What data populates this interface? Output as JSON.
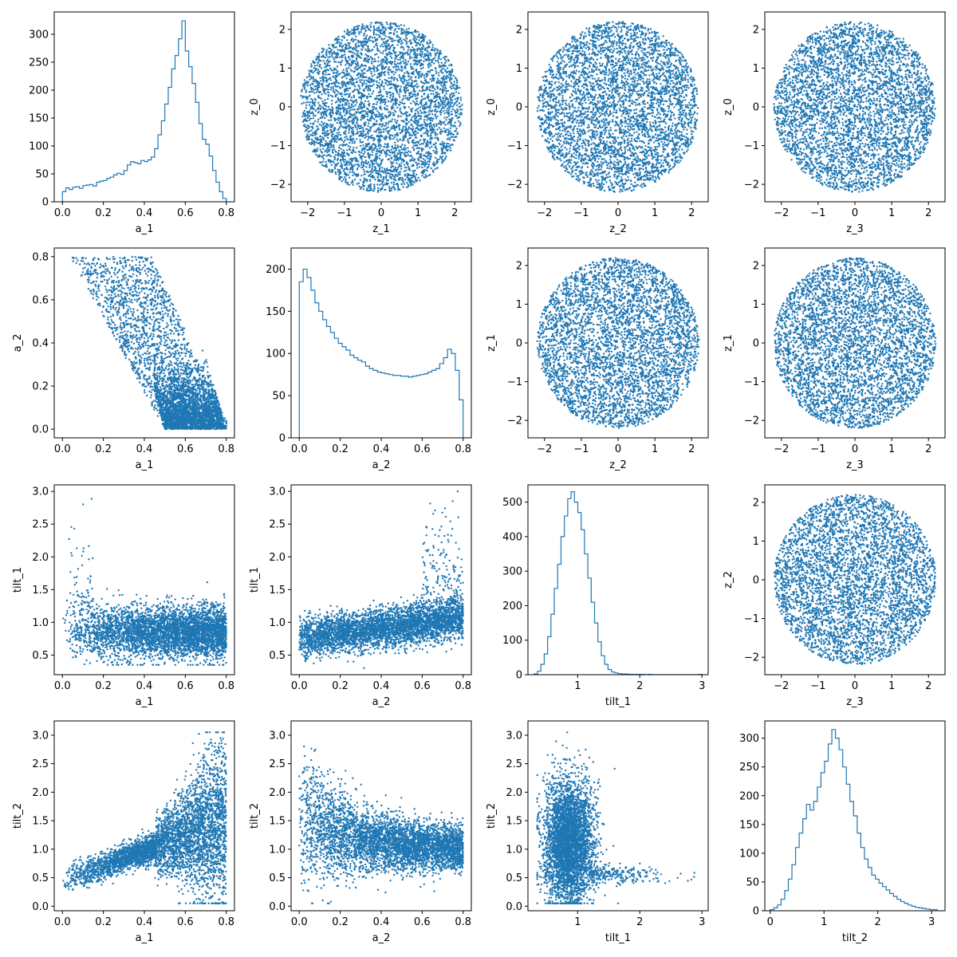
{
  "chart_data": {
    "type": "pairplot",
    "series_color": "#1f77b4",
    "variables": [
      "a_1",
      "a_2",
      "tilt_1",
      "tilt_2",
      "z_0",
      "z_1",
      "z_2",
      "z_3"
    ],
    "panels": [
      {
        "row": 0,
        "col": 0,
        "type": "histogram",
        "xlabel": "a_1",
        "ylabel": "",
        "xlim": [
          -0.04,
          0.84
        ],
        "ylim": [
          0,
          340
        ],
        "xticks": [
          "0.0",
          "0.2",
          "0.4",
          "0.6",
          "0.8"
        ],
        "yticks": [
          "0",
          "50",
          "100",
          "150",
          "200",
          "250",
          "300"
        ],
        "bins_range": [
          0.0,
          0.8
        ],
        "counts": [
          18,
          25,
          22,
          26,
          27,
          24,
          29,
          30,
          31,
          28,
          35,
          37,
          38,
          42,
          44,
          48,
          51,
          49,
          56,
          66,
          72,
          70,
          68,
          74,
          72,
          75,
          80,
          95,
          120,
          145,
          175,
          205,
          238,
          262,
          292,
          324,
          270,
          242,
          212,
          178,
          140,
          112,
          103,
          82,
          56,
          35,
          18,
          6
        ]
      },
      {
        "row": 0,
        "col": 1,
        "type": "scatter",
        "xlabel": "z_1",
        "ylabel": "z_0",
        "xlim": [
          -2.45,
          2.45
        ],
        "ylim": [
          -2.45,
          2.45
        ],
        "xticks": [
          "−2",
          "−1",
          "0",
          "1",
          "2"
        ],
        "yticks": [
          "−2",
          "−1",
          "0",
          "1",
          "2"
        ],
        "distribution": "disk",
        "radius": 2.2
      },
      {
        "row": 0,
        "col": 2,
        "type": "scatter",
        "xlabel": "z_2",
        "ylabel": "z_0",
        "xlim": [
          -2.45,
          2.45
        ],
        "ylim": [
          -2.45,
          2.45
        ],
        "xticks": [
          "−2",
          "−1",
          "0",
          "1",
          "2"
        ],
        "yticks": [
          "−2",
          "−1",
          "0",
          "1",
          "2"
        ],
        "distribution": "disk",
        "radius": 2.2
      },
      {
        "row": 0,
        "col": 3,
        "type": "scatter",
        "xlabel": "z_3",
        "ylabel": "z_0",
        "xlim": [
          -2.45,
          2.45
        ],
        "ylim": [
          -2.45,
          2.45
        ],
        "xticks": [
          "−2",
          "−1",
          "0",
          "1",
          "2"
        ],
        "yticks": [
          "−2",
          "−1",
          "0",
          "1",
          "2"
        ],
        "distribution": "disk",
        "radius": 2.2
      },
      {
        "row": 1,
        "col": 0,
        "type": "scatter",
        "xlabel": "a_1",
        "ylabel": "a_2",
        "xlim": [
          -0.04,
          0.84
        ],
        "ylim": [
          -0.04,
          0.84
        ],
        "xticks": [
          "0.0",
          "0.2",
          "0.4",
          "0.6",
          "0.8"
        ],
        "yticks": [
          "0.0",
          "0.2",
          "0.4",
          "0.6",
          "0.8"
        ],
        "distribution": "a1_a2"
      },
      {
        "row": 1,
        "col": 1,
        "type": "histogram",
        "xlabel": "a_2",
        "ylabel": "",
        "xlim": [
          -0.04,
          0.84
        ],
        "ylim": [
          0,
          225
        ],
        "xticks": [
          "0.0",
          "0.2",
          "0.4",
          "0.6",
          "0.8"
        ],
        "yticks": [
          "0",
          "50",
          "100",
          "150",
          "200"
        ],
        "bins_range": [
          0.0,
          0.8
        ],
        "counts": [
          185,
          200,
          190,
          175,
          160,
          150,
          140,
          132,
          125,
          118,
          112,
          108,
          104,
          98,
          95,
          92,
          90,
          85,
          82,
          80,
          78,
          77,
          76,
          75,
          74,
          74,
          73,
          73,
          72,
          73,
          74,
          75,
          76,
          78,
          80,
          82,
          88,
          95,
          105,
          100,
          80,
          45
        ]
      },
      {
        "row": 1,
        "col": 2,
        "type": "scatter",
        "xlabel": "z_2",
        "ylabel": "z_1",
        "xlim": [
          -2.45,
          2.45
        ],
        "ylim": [
          -2.45,
          2.45
        ],
        "xticks": [
          "−2",
          "−1",
          "0",
          "1",
          "2"
        ],
        "yticks": [
          "−2",
          "−1",
          "0",
          "1",
          "2"
        ],
        "distribution": "disk",
        "radius": 2.2
      },
      {
        "row": 1,
        "col": 3,
        "type": "scatter",
        "xlabel": "z_3",
        "ylabel": "z_1",
        "xlim": [
          -2.45,
          2.45
        ],
        "ylim": [
          -2.45,
          2.45
        ],
        "xticks": [
          "−2",
          "−1",
          "0",
          "1",
          "2"
        ],
        "yticks": [
          "−2",
          "−1",
          "0",
          "1",
          "2"
        ],
        "distribution": "disk",
        "radius": 2.2
      },
      {
        "row": 2,
        "col": 0,
        "type": "scatter",
        "xlabel": "a_1",
        "ylabel": "tilt_1",
        "xlim": [
          -0.04,
          0.84
        ],
        "ylim": [
          0.2,
          3.1
        ],
        "xticks": [
          "0.0",
          "0.2",
          "0.4",
          "0.6",
          "0.8"
        ],
        "yticks": [
          "0.5",
          "1.0",
          "1.5",
          "2.0",
          "2.5",
          "3.0"
        ],
        "distribution": "a1_tilt1"
      },
      {
        "row": 2,
        "col": 1,
        "type": "scatter",
        "xlabel": "a_2",
        "ylabel": "tilt_1",
        "xlim": [
          -0.04,
          0.84
        ],
        "ylim": [
          0.2,
          3.1
        ],
        "xticks": [
          "0.0",
          "0.2",
          "0.4",
          "0.6",
          "0.8"
        ],
        "yticks": [
          "0.5",
          "1.0",
          "1.5",
          "2.0",
          "2.5",
          "3.0"
        ],
        "distribution": "a2_tilt1"
      },
      {
        "row": 2,
        "col": 2,
        "type": "histogram",
        "xlabel": "tilt_1",
        "ylabel": "",
        "xlim": [
          0.2,
          3.1
        ],
        "ylim": [
          0,
          550
        ],
        "xticks": [
          "1",
          "2",
          "3"
        ],
        "yticks": [
          "0",
          "100",
          "200",
          "300",
          "400",
          "500"
        ],
        "bins_range": [
          0.3,
          3.0
        ],
        "counts": [
          2,
          10,
          30,
          60,
          110,
          175,
          250,
          320,
          400,
          460,
          510,
          530,
          500,
          470,
          420,
          350,
          280,
          210,
          150,
          95,
          55,
          30,
          15,
          8,
          5,
          3,
          2,
          2,
          1,
          1,
          1,
          1,
          1,
          0,
          1,
          0,
          0,
          0,
          0,
          0,
          0,
          0,
          0,
          0,
          0,
          0,
          0,
          0,
          0,
          1
        ]
      },
      {
        "row": 2,
        "col": 3,
        "type": "scatter",
        "xlabel": "z_3",
        "ylabel": "z_2",
        "xlim": [
          -2.45,
          2.45
        ],
        "ylim": [
          -2.45,
          2.45
        ],
        "xticks": [
          "−2",
          "−1",
          "0",
          "1",
          "2"
        ],
        "yticks": [
          "−2",
          "−1",
          "0",
          "1",
          "2"
        ],
        "distribution": "disk",
        "radius": 2.2
      },
      {
        "row": 3,
        "col": 0,
        "type": "scatter",
        "xlabel": "a_1",
        "ylabel": "tilt_2",
        "xlim": [
          -0.04,
          0.84
        ],
        "ylim": [
          -0.08,
          3.25
        ],
        "xticks": [
          "0.0",
          "0.2",
          "0.4",
          "0.6",
          "0.8"
        ],
        "yticks": [
          "0.0",
          "0.5",
          "1.0",
          "1.5",
          "2.0",
          "2.5",
          "3.0"
        ],
        "distribution": "a1_tilt2"
      },
      {
        "row": 3,
        "col": 1,
        "type": "scatter",
        "xlabel": "a_2",
        "ylabel": "tilt_2",
        "xlim": [
          -0.04,
          0.84
        ],
        "ylim": [
          -0.08,
          3.25
        ],
        "xticks": [
          "0.0",
          "0.2",
          "0.4",
          "0.6",
          "0.8"
        ],
        "yticks": [
          "0.0",
          "0.5",
          "1.0",
          "1.5",
          "2.0",
          "2.5",
          "3.0"
        ],
        "distribution": "a2_tilt2"
      },
      {
        "row": 3,
        "col": 2,
        "type": "scatter",
        "xlabel": "tilt_1",
        "ylabel": "tilt_2",
        "xlim": [
          0.2,
          3.1
        ],
        "ylim": [
          -0.08,
          3.25
        ],
        "xticks": [
          "1",
          "2",
          "3"
        ],
        "yticks": [
          "0.0",
          "0.5",
          "1.0",
          "1.5",
          "2.0",
          "2.5",
          "3.0"
        ],
        "distribution": "tilt1_tilt2"
      },
      {
        "row": 3,
        "col": 3,
        "type": "histogram",
        "xlabel": "tilt_2",
        "ylabel": "",
        "xlim": [
          -0.1,
          3.25
        ],
        "ylim": [
          0,
          330
        ],
        "xticks": [
          "0",
          "1",
          "2",
          "3"
        ],
        "yticks": [
          "0",
          "50",
          "100",
          "150",
          "200",
          "250",
          "300"
        ],
        "bins_range": [
          0.0,
          3.1
        ],
        "counts": [
          2,
          5,
          10,
          20,
          35,
          55,
          80,
          110,
          135,
          160,
          185,
          175,
          190,
          215,
          240,
          260,
          290,
          315,
          300,
          280,
          250,
          220,
          190,
          165,
          135,
          110,
          90,
          75,
          62,
          55,
          48,
          42,
          36,
          30,
          25,
          20,
          16,
          13,
          10,
          8,
          6,
          5,
          4,
          3,
          2,
          2
        ]
      }
    ]
  }
}
